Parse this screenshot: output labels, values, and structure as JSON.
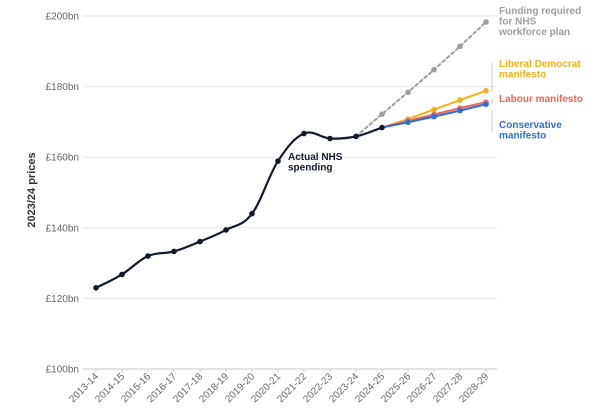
{
  "chart_data": {
    "type": "line",
    "ylabel": "2023/24 prices",
    "xlabel": "",
    "ylim": [
      100,
      200
    ],
    "yticks": [
      100,
      120,
      140,
      160,
      180,
      200
    ],
    "ytick_labels": [
      "£100bn",
      "£120bn",
      "£140bn",
      "£160bn",
      "£180bn",
      "£200bn"
    ],
    "grid": "horizontal",
    "categories": [
      "2013-14",
      "2014-15",
      "2015-16",
      "2016-17",
      "2017-18",
      "2018-19",
      "2019-20",
      "2020-21",
      "2021-22",
      "2022-23",
      "2023-24",
      "2024-25",
      "2025-26",
      "2026-27",
      "2027-28",
      "2028-29"
    ],
    "series": [
      {
        "name": "Actual NHS spending",
        "label_lines": [
          "Actual NHS",
          "spending"
        ],
        "color": "#0f1a2c",
        "style": "solid-smooth",
        "points": [
          [
            "2013-14",
            123.0
          ],
          [
            "2014-15",
            126.8
          ],
          [
            "2015-16",
            132.0
          ],
          [
            "2016-17",
            133.3
          ],
          [
            "2017-18",
            136.1
          ],
          [
            "2018-19",
            139.4
          ],
          [
            "2019-20",
            144.0
          ],
          [
            "2020-21",
            158.9
          ],
          [
            "2021-22",
            166.7
          ],
          [
            "2022-23",
            165.3
          ],
          [
            "2023-24",
            165.9
          ],
          [
            "2024-25",
            168.4
          ]
        ]
      },
      {
        "name": "Funding required for NHS workforce plan",
        "label_lines": [
          "Funding required",
          "for NHS",
          "workforce plan"
        ],
        "color": "#9e9e9e",
        "style": "dashed",
        "points": [
          [
            "2023-24",
            165.9
          ],
          [
            "2024-25",
            172.2
          ],
          [
            "2025-26",
            178.4
          ],
          [
            "2026-27",
            184.8
          ],
          [
            "2027-28",
            191.4
          ],
          [
            "2028-29",
            198.3
          ]
        ]
      },
      {
        "name": "Liberal Democrat manifesto",
        "label_lines": [
          "Liberal Democrat",
          "manifesto"
        ],
        "color": "#f2b118",
        "style": "solid",
        "points": [
          [
            "2024-25",
            168.4
          ],
          [
            "2025-26",
            170.8
          ],
          [
            "2026-27",
            173.5
          ],
          [
            "2027-28",
            176.2
          ],
          [
            "2028-29",
            178.8
          ]
        ]
      },
      {
        "name": "Labour manifesto",
        "label_lines": [
          "Labour manifesto"
        ],
        "color": "#f26450",
        "style": "solid",
        "points": [
          [
            "2024-25",
            168.4
          ],
          [
            "2025-26",
            170.3
          ],
          [
            "2026-27",
            172.1
          ],
          [
            "2027-28",
            173.9
          ],
          [
            "2028-29",
            175.6
          ]
        ]
      },
      {
        "name": "Conservative manifesto",
        "label_lines": [
          "Conservative",
          "manifesto"
        ],
        "color": "#2e6fd6",
        "style": "solid",
        "points": [
          [
            "2024-25",
            168.4
          ],
          [
            "2025-26",
            169.9
          ],
          [
            "2026-27",
            171.5
          ],
          [
            "2027-28",
            173.2
          ],
          [
            "2028-29",
            175.0
          ]
        ]
      }
    ]
  }
}
